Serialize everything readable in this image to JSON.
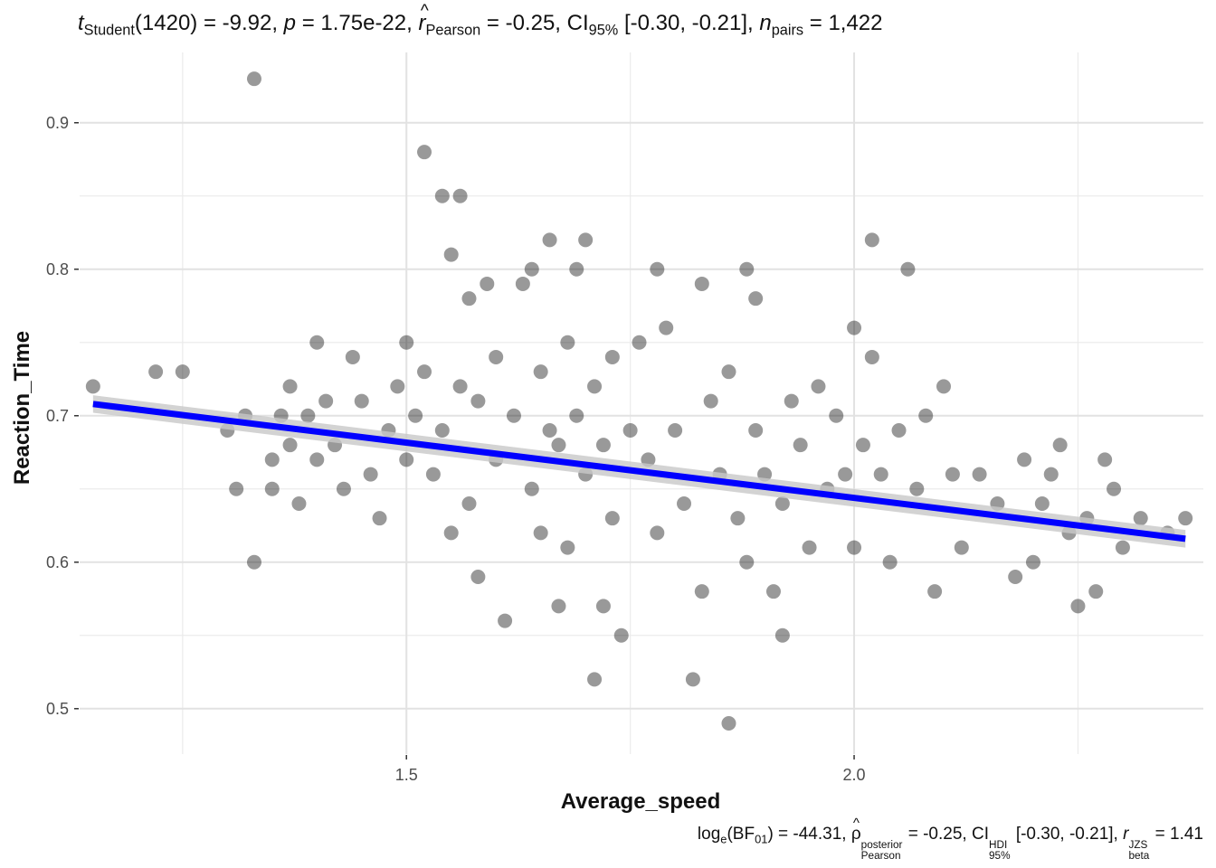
{
  "title": {
    "t_label": "t",
    "t_sub": "Student",
    "t_value": "(1420) = -9.92, ",
    "p_label": "p",
    "p_value": " = 1.75e-22, ",
    "r_label": "r",
    "r_sub": "Pearson",
    "r_value": " = -0.25, CI",
    "ci_sub": "95%",
    "ci_value": " [-0.30, -0.21], ",
    "n_label": "n",
    "n_sub": "pairs",
    "n_value": " = 1,422"
  },
  "caption": {
    "log_label": "log",
    "log_sub": "e",
    "bf_open": "(BF",
    "bf_sub": "01",
    "bf_value": ") = -44.31, ",
    "rho_label": "ρ",
    "rho_sup": "posterior",
    "rho_sub": "Pearson",
    "rho_value": " = -0.25, CI",
    "ci_sup": "HDI",
    "ci_sub": "95%",
    "ci_value": " [-0.30, -0.21], ",
    "r_label": "r",
    "r_sup": "JZS",
    "r_sub": "beta",
    "r_value": " = 1.41"
  },
  "chart_data": {
    "type": "scatter",
    "xlabel": "Average_speed",
    "ylabel": "Reaction_Time",
    "xlim": [
      1.135,
      2.39
    ],
    "ylim": [
      0.469,
      0.948
    ],
    "x_ticks": [
      1.5,
      2.0
    ],
    "x_tick_labels": [
      "1.5",
      "2.0"
    ],
    "y_ticks": [
      0.5,
      0.6,
      0.7,
      0.8,
      0.9
    ],
    "y_tick_labels": [
      "0.5",
      "0.6",
      "0.7",
      "0.8",
      "0.9"
    ],
    "grid": true,
    "point_color": "#000000",
    "point_alpha": 0.4,
    "regression": {
      "x": [
        1.15,
        2.37
      ],
      "y": [
        0.708,
        0.616
      ],
      "ci_width": 0.006,
      "color": "#0000ff",
      "band_color": "#c8c8c8"
    },
    "points": [
      [
        1.15,
        0.72
      ],
      [
        1.22,
        0.73
      ],
      [
        1.25,
        0.73
      ],
      [
        1.33,
        0.93
      ],
      [
        1.32,
        0.7
      ],
      [
        1.31,
        0.65
      ],
      [
        1.33,
        0.6
      ],
      [
        1.3,
        0.69
      ],
      [
        1.35,
        0.67
      ],
      [
        1.35,
        0.65
      ],
      [
        1.36,
        0.7
      ],
      [
        1.37,
        0.68
      ],
      [
        1.37,
        0.72
      ],
      [
        1.38,
        0.64
      ],
      [
        1.39,
        0.7
      ],
      [
        1.4,
        0.75
      ],
      [
        1.4,
        0.67
      ],
      [
        1.41,
        0.71
      ],
      [
        1.42,
        0.68
      ],
      [
        1.43,
        0.65
      ],
      [
        1.44,
        0.74
      ],
      [
        1.45,
        0.71
      ],
      [
        1.46,
        0.66
      ],
      [
        1.47,
        0.63
      ],
      [
        1.48,
        0.69
      ],
      [
        1.49,
        0.72
      ],
      [
        1.5,
        0.75
      ],
      [
        1.5,
        0.67
      ],
      [
        1.51,
        0.7
      ],
      [
        1.52,
        0.88
      ],
      [
        1.52,
        0.73
      ],
      [
        1.53,
        0.66
      ],
      [
        1.54,
        0.85
      ],
      [
        1.54,
        0.69
      ],
      [
        1.55,
        0.81
      ],
      [
        1.55,
        0.62
      ],
      [
        1.56,
        0.85
      ],
      [
        1.56,
        0.72
      ],
      [
        1.57,
        0.78
      ],
      [
        1.57,
        0.64
      ],
      [
        1.58,
        0.71
      ],
      [
        1.58,
        0.59
      ],
      [
        1.59,
        0.79
      ],
      [
        1.6,
        0.67
      ],
      [
        1.6,
        0.74
      ],
      [
        1.61,
        0.56
      ],
      [
        1.62,
        0.7
      ],
      [
        1.63,
        0.79
      ],
      [
        1.64,
        0.8
      ],
      [
        1.64,
        0.65
      ],
      [
        1.65,
        0.73
      ],
      [
        1.65,
        0.62
      ],
      [
        1.66,
        0.82
      ],
      [
        1.66,
        0.69
      ],
      [
        1.67,
        0.68
      ],
      [
        1.67,
        0.57
      ],
      [
        1.68,
        0.75
      ],
      [
        1.68,
        0.61
      ],
      [
        1.69,
        0.8
      ],
      [
        1.69,
        0.7
      ],
      [
        1.7,
        0.82
      ],
      [
        1.7,
        0.66
      ],
      [
        1.71,
        0.72
      ],
      [
        1.71,
        0.52
      ],
      [
        1.72,
        0.68
      ],
      [
        1.72,
        0.57
      ],
      [
        1.73,
        0.74
      ],
      [
        1.73,
        0.63
      ],
      [
        1.74,
        0.55
      ],
      [
        1.75,
        0.69
      ],
      [
        1.76,
        0.75
      ],
      [
        1.77,
        0.67
      ],
      [
        1.78,
        0.8
      ],
      [
        1.78,
        0.62
      ],
      [
        1.79,
        0.76
      ],
      [
        1.8,
        0.69
      ],
      [
        1.81,
        0.64
      ],
      [
        1.82,
        0.52
      ],
      [
        1.83,
        0.79
      ],
      [
        1.83,
        0.58
      ],
      [
        1.84,
        0.71
      ],
      [
        1.85,
        0.66
      ],
      [
        1.86,
        0.73
      ],
      [
        1.86,
        0.49
      ],
      [
        1.87,
        0.63
      ],
      [
        1.88,
        0.8
      ],
      [
        1.88,
        0.6
      ],
      [
        1.89,
        0.78
      ],
      [
        1.89,
        0.69
      ],
      [
        1.9,
        0.66
      ],
      [
        1.91,
        0.58
      ],
      [
        1.92,
        0.64
      ],
      [
        1.92,
        0.55
      ],
      [
        1.93,
        0.71
      ],
      [
        1.94,
        0.68
      ],
      [
        1.95,
        0.61
      ],
      [
        1.96,
        0.72
      ],
      [
        1.97,
        0.65
      ],
      [
        1.98,
        0.7
      ],
      [
        1.99,
        0.66
      ],
      [
        2.0,
        0.76
      ],
      [
        2.0,
        0.61
      ],
      [
        2.01,
        0.68
      ],
      [
        2.02,
        0.82
      ],
      [
        2.02,
        0.74
      ],
      [
        2.03,
        0.66
      ],
      [
        2.04,
        0.6
      ],
      [
        2.05,
        0.69
      ],
      [
        2.06,
        0.8
      ],
      [
        2.07,
        0.65
      ],
      [
        2.08,
        0.7
      ],
      [
        2.09,
        0.58
      ],
      [
        2.1,
        0.72
      ],
      [
        2.11,
        0.66
      ],
      [
        2.12,
        0.61
      ],
      [
        2.14,
        0.66
      ],
      [
        2.16,
        0.64
      ],
      [
        2.18,
        0.59
      ],
      [
        2.19,
        0.67
      ],
      [
        2.2,
        0.6
      ],
      [
        2.21,
        0.64
      ],
      [
        2.22,
        0.66
      ],
      [
        2.23,
        0.68
      ],
      [
        2.24,
        0.62
      ],
      [
        2.25,
        0.57
      ],
      [
        2.26,
        0.63
      ],
      [
        2.27,
        0.58
      ],
      [
        2.28,
        0.67
      ],
      [
        2.29,
        0.65
      ],
      [
        2.3,
        0.61
      ],
      [
        2.32,
        0.63
      ],
      [
        2.35,
        0.62
      ],
      [
        2.37,
        0.63
      ]
    ]
  }
}
